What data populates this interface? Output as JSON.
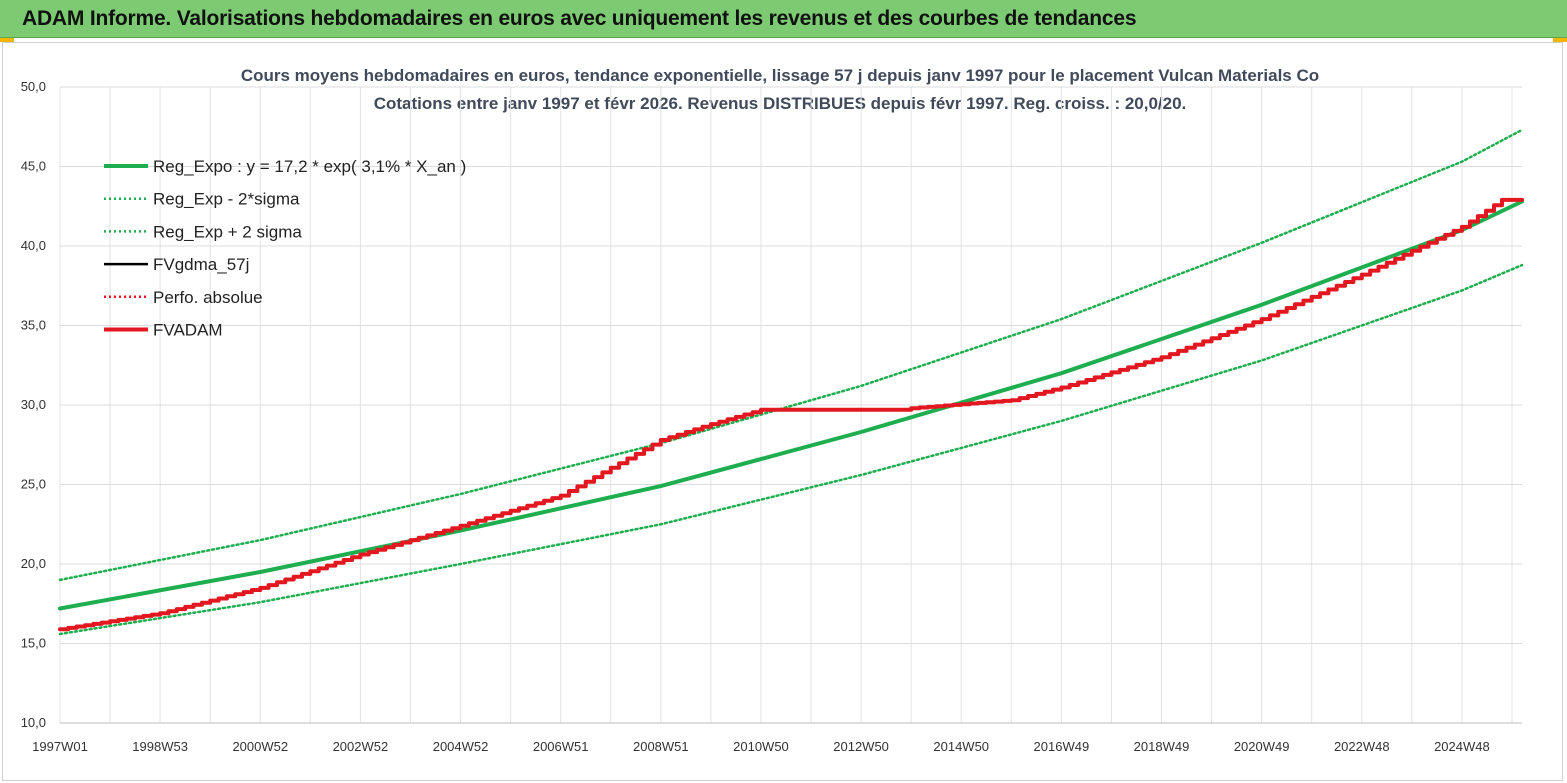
{
  "header": {
    "title": "ADAM Informe. Valorisations hebdomadaires en euros avec uniquement les revenus et des courbes de tendances"
  },
  "colors": {
    "header_bg": "#7ccb73",
    "trend": "#1fae4f",
    "adam": "#e3171f",
    "black_series": "#000000"
  },
  "chart_data": {
    "type": "line",
    "title": "Cours moyens hebdomadaires en euros, tendance exponentielle, lissage 57 j depuis janv 1997 pour le placement Vulcan Materials Co",
    "subtitle": "Cotations entre janv 1997 et févr 2026. Revenus DISTRIBUES depuis févr 1997. Reg. croiss. : 20,0/20.",
    "x_range": [
      1997.0,
      2026.2
    ],
    "x_ticks": [
      {
        "label": "1997W01",
        "x": 1997.0
      },
      {
        "label": "1998W53",
        "x": 1999.0
      },
      {
        "label": "2000W52",
        "x": 2001.0
      },
      {
        "label": "2002W52",
        "x": 2003.0
      },
      {
        "label": "2004W52",
        "x": 2005.0
      },
      {
        "label": "2006W51",
        "x": 2007.0
      },
      {
        "label": "2008W51",
        "x": 2009.0
      },
      {
        "label": "2010W50",
        "x": 2011.0
      },
      {
        "label": "2012W50",
        "x": 2013.0
      },
      {
        "label": "2014W50",
        "x": 2015.0
      },
      {
        "label": "2016W49",
        "x": 2017.0
      },
      {
        "label": "2018W49",
        "x": 2019.0
      },
      {
        "label": "2020W49",
        "x": 2021.0
      },
      {
        "label": "2022W48",
        "x": 2023.0
      },
      {
        "label": "2024W48",
        "x": 2025.0
      }
    ],
    "ylim": [
      10,
      50
    ],
    "y_ticks": [
      "10,0",
      "15,0",
      "20,0",
      "25,0",
      "30,0",
      "35,0",
      "40,0",
      "45,0",
      "50,0"
    ],
    "grid": true,
    "legend_position": "top-left",
    "series": [
      {
        "name": "Reg_Expo : y = 17,2 * exp( 3,1% *  X_an )",
        "style": "thick-solid",
        "color": "#1fae4f",
        "x": [
          1997.0,
          2001.0,
          2005.0,
          2009.0,
          2013.0,
          2017.0,
          2021.0,
          2025.0,
          2026.2
        ],
        "y": [
          17.2,
          19.5,
          22.1,
          24.9,
          28.3,
          32.0,
          36.3,
          41.0,
          42.8
        ]
      },
      {
        "name": "Reg_Exp - 2*sigma",
        "style": "dotted",
        "color": "#1fae4f",
        "x": [
          1997.0,
          2001.0,
          2005.0,
          2009.0,
          2013.0,
          2017.0,
          2021.0,
          2025.0,
          2026.2
        ],
        "y": [
          15.6,
          17.6,
          20.0,
          22.5,
          25.6,
          29.0,
          32.8,
          37.2,
          38.8
        ]
      },
      {
        "name": "Reg_Exp + 2 sigma",
        "style": "dotted",
        "color": "#1fae4f",
        "x": [
          1997.0,
          2001.0,
          2005.0,
          2009.0,
          2013.0,
          2017.0,
          2021.0,
          2025.0,
          2026.2
        ],
        "y": [
          19.0,
          21.5,
          24.4,
          27.6,
          31.2,
          35.4,
          40.2,
          45.3,
          47.3
        ]
      },
      {
        "name": "FVgdma_57j",
        "style": "solid",
        "color": "#000000",
        "x": [],
        "y": []
      },
      {
        "name": "Perfo. absolue",
        "style": "dotted",
        "color": "#e3171f",
        "x": [],
        "y": []
      },
      {
        "name": "FVADAM",
        "style": "thick-solid",
        "color": "#e3171f",
        "x": [
          1997.0,
          1999.0,
          2001.0,
          2003.0,
          2005.0,
          2007.0,
          2009.0,
          2010.0,
          2011.0,
          2012.0,
          2014.0,
          2016.0,
          2017.0,
          2019.0,
          2021.0,
          2023.0,
          2025.0,
          2025.8,
          2026.2
        ],
        "y": [
          15.9,
          16.9,
          18.5,
          20.6,
          22.4,
          24.3,
          27.8,
          28.8,
          29.7,
          29.7,
          29.8,
          30.3,
          31.1,
          33.0,
          35.4,
          38.2,
          41.2,
          42.9,
          42.9
        ]
      }
    ]
  }
}
